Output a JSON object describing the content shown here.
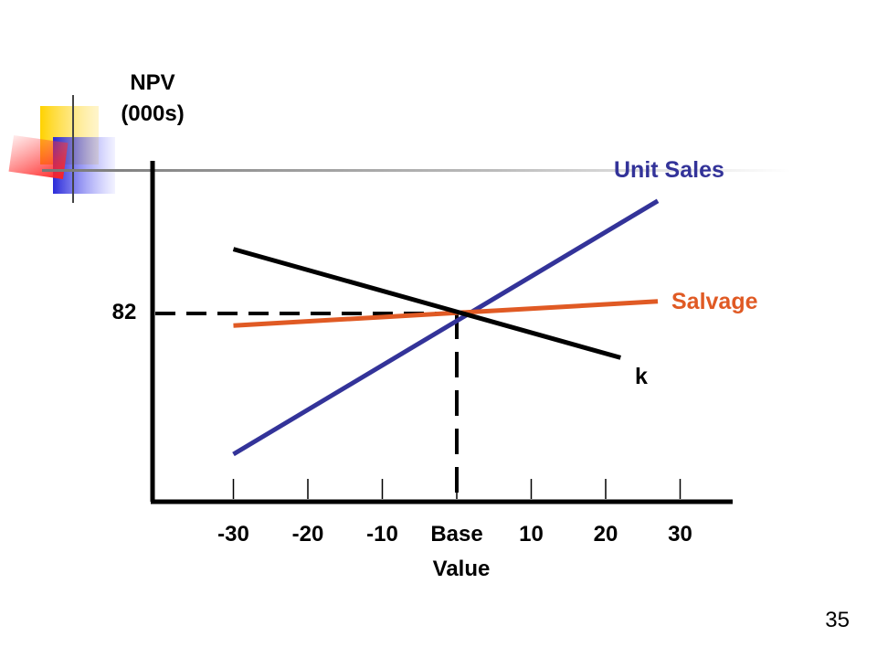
{
  "slide": {
    "number": "35"
  },
  "chart_data": {
    "type": "line",
    "ylabel_lines": [
      "NPV",
      "(000s)"
    ],
    "xlabel": "",
    "x": [
      -30,
      -20,
      -10,
      0,
      10,
      20,
      30
    ],
    "x_tick_labels": [
      "-30",
      "-20",
      "-10",
      "Base",
      "10",
      "20",
      "30"
    ],
    "x_tick_sublabel": "Value",
    "y_tick_labels": [
      {
        "value": 82,
        "label": "82"
      }
    ],
    "base_point": {
      "x": 0,
      "y": 82
    },
    "series": [
      {
        "name": "Unit Sales",
        "color": "#333399",
        "x_start": -30,
        "x_end": 27,
        "y_rel_start": -0.7,
        "y_rel_end": 0.56
      },
      {
        "name": "Salvage",
        "color": "#E05A24",
        "x_start": -30,
        "x_end": 27,
        "y_rel_start": -0.06,
        "y_rel_end": 0.06
      },
      {
        "name": "k",
        "color": "#000000",
        "x_start": -30,
        "x_end": 22,
        "y_rel_start": 0.32,
        "y_rel_end": -0.22
      }
    ],
    "grid": false,
    "legend": "labels-at-line-ends"
  }
}
